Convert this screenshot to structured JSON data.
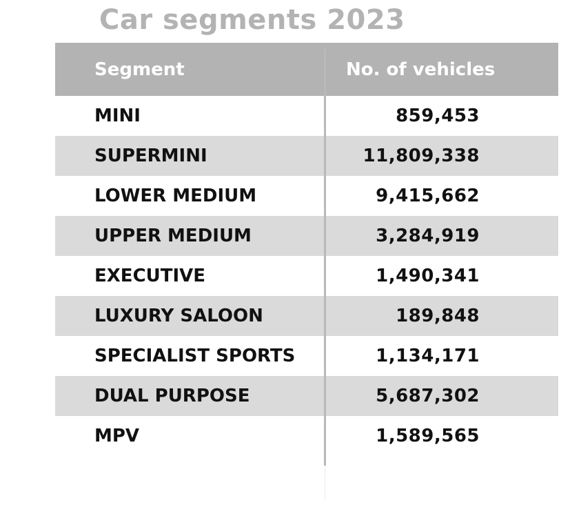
{
  "title": "Car segments 2023",
  "colors": {
    "header_bg": "#b3b3b3",
    "title_color": "#b3b3b3",
    "row_shade": "#dadada",
    "text": "#111111"
  },
  "table": {
    "headers": {
      "segment": "Segment",
      "vehicles": "No. of vehicles"
    },
    "rows": [
      {
        "segment": "MINI",
        "vehicles": "859,453"
      },
      {
        "segment": "SUPERMINI",
        "vehicles": "11,809,338"
      },
      {
        "segment": "LOWER MEDIUM",
        "vehicles": "9,415,662"
      },
      {
        "segment": "UPPER MEDIUM",
        "vehicles": "3,284,919"
      },
      {
        "segment": "EXECUTIVE",
        "vehicles": "1,490,341"
      },
      {
        "segment": "LUXURY SALOON",
        "vehicles": "189,848"
      },
      {
        "segment": "SPECIALIST SPORTS",
        "vehicles": "1,134,171"
      },
      {
        "segment": "DUAL PURPOSE",
        "vehicles": "5,687,302"
      },
      {
        "segment": "MPV",
        "vehicles": "1,589,565"
      }
    ]
  }
}
